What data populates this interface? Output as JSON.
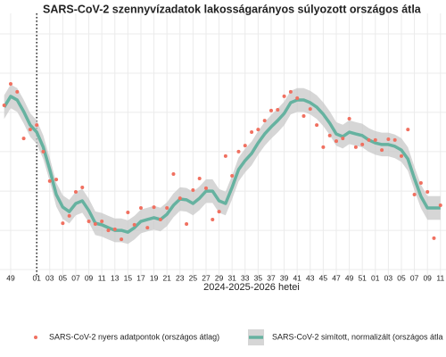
{
  "chart_data": {
    "type": "scatter-smooth",
    "title": "SARS-CoV-2 szennyvízadatok lakosságarányos súlyozott országos átla",
    "xlabel": "2024-2025-2026 hetei",
    "x": [
      -1,
      0,
      1,
      2,
      3,
      4,
      5,
      6,
      7,
      8,
      9,
      10,
      11,
      12,
      13,
      14,
      15,
      16,
      17,
      18,
      19,
      20,
      21,
      22,
      23,
      24,
      25,
      26,
      27,
      28,
      29,
      30,
      31,
      32,
      33,
      34,
      35,
      36,
      37,
      38,
      39,
      40,
      41,
      42,
      43,
      44,
      45,
      46,
      47,
      48,
      49,
      50,
      51,
      52,
      53,
      54,
      55,
      56,
      57,
      58,
      59,
      60,
      61,
      62,
      63,
      64,
      65,
      66
    ],
    "series": [
      {
        "name": "SARS-CoV-2 nyers adatpontok (országos átlag)",
        "color": "#f07060",
        "values": [
          65.1,
          73.2,
          70.2,
          52.5,
          55.9,
          57.6,
          47.5,
          36.3,
          36.9,
          20.3,
          23.1,
          32.2,
          33.9,
          21.0,
          20.0,
          21.0,
          17.6,
          18.0,
          14.2,
          24.4,
          19.7,
          26.1,
          18.6,
          26.4,
          21.7,
          26.1,
          39.0,
          29.8,
          20.0,
          32.9,
          37.3,
          33.6,
          21.7,
          24.7,
          45.8,
          38.3,
          47.5,
          49.8,
          54.9,
          55.9,
          59.3,
          63.1,
          63.4,
          68.5,
          70.2,
          67.8,
          61.0,
          63.7,
          57.6,
          49.2,
          53.6,
          51.5,
          52.5,
          60.0,
          49.2,
          50.2,
          51.9,
          51.9,
          48.1,
          52.2,
          51.9,
          45.8,
          55.9,
          31.2,
          35.6,
          32.2,
          14.6,
          27.1
        ]
      },
      {
        "name": "SARS-CoV-2 simított, normalizált (országos átla",
        "color": "#66b2a0",
        "band_color": "#c8c8c8",
        "band_halfwidth": 4.5,
        "values": [
          64.4,
          68.5,
          67.1,
          62.7,
          57.6,
          54.9,
          49.2,
          40.7,
          31.2,
          26.4,
          24.7,
          27.8,
          28.8,
          25.1,
          20.3,
          19.7,
          18.6,
          17.6,
          17.6,
          16.9,
          18.6,
          21.0,
          21.7,
          22.4,
          21.7,
          23.7,
          27.1,
          29.5,
          29.2,
          27.8,
          29.8,
          32.5,
          32.5,
          28.8,
          27.8,
          33.9,
          40.7,
          44.1,
          46.8,
          50.8,
          54.2,
          56.9,
          59.3,
          62.0,
          66.1,
          67.1,
          67.1,
          66.1,
          64.4,
          61.7,
          58.3,
          54.2,
          53.2,
          54.9,
          54.2,
          53.6,
          51.9,
          50.8,
          50.2,
          50.2,
          49.5,
          48.1,
          44.7,
          37.3,
          30.5,
          26.1,
          26.1,
          26.1
        ]
      }
    ],
    "xlim": [
      -1.64,
      66.85
    ],
    "xticks": [
      {
        "value": 0,
        "label": "49"
      },
      {
        "value": 4,
        "label": "01"
      },
      {
        "value": 6,
        "label": "03"
      },
      {
        "value": 8,
        "label": "05"
      },
      {
        "value": 10,
        "label": "07"
      },
      {
        "value": 12,
        "label": "09"
      },
      {
        "value": 14,
        "label": "11"
      },
      {
        "value": 16,
        "label": "13"
      },
      {
        "value": 18,
        "label": "15"
      },
      {
        "value": 20,
        "label": "17"
      },
      {
        "value": 22,
        "label": "19"
      },
      {
        "value": 24,
        "label": "21"
      },
      {
        "value": 26,
        "label": "23"
      },
      {
        "value": 28,
        "label": "25"
      },
      {
        "value": 30,
        "label": "27"
      },
      {
        "value": 32,
        "label": "29"
      },
      {
        "value": 34,
        "label": "31"
      },
      {
        "value": 36,
        "label": "33"
      },
      {
        "value": 38,
        "label": "35"
      },
      {
        "value": 40,
        "label": "37"
      },
      {
        "value": 42,
        "label": "39"
      },
      {
        "value": 44,
        "label": "41"
      },
      {
        "value": 46,
        "label": "43"
      },
      {
        "value": 48,
        "label": "45"
      },
      {
        "value": 50,
        "label": "47"
      },
      {
        "value": 52,
        "label": "49"
      },
      {
        "value": 54,
        "label": "51"
      },
      {
        "value": 56,
        "label": "01"
      },
      {
        "value": 58,
        "label": "03"
      },
      {
        "value": 60,
        "label": "05"
      },
      {
        "value": 62,
        "label": "07"
      },
      {
        "value": 64,
        "label": "09"
      },
      {
        "value": 66,
        "label": "11"
      }
    ],
    "ylim": [
      0,
      100
    ],
    "yticks": [
      2.7,
      17.6,
      32.5,
      47.5,
      62.4,
      77.3,
      92.2
    ],
    "grid": true,
    "vline_x": 4,
    "legend": "bottom"
  }
}
